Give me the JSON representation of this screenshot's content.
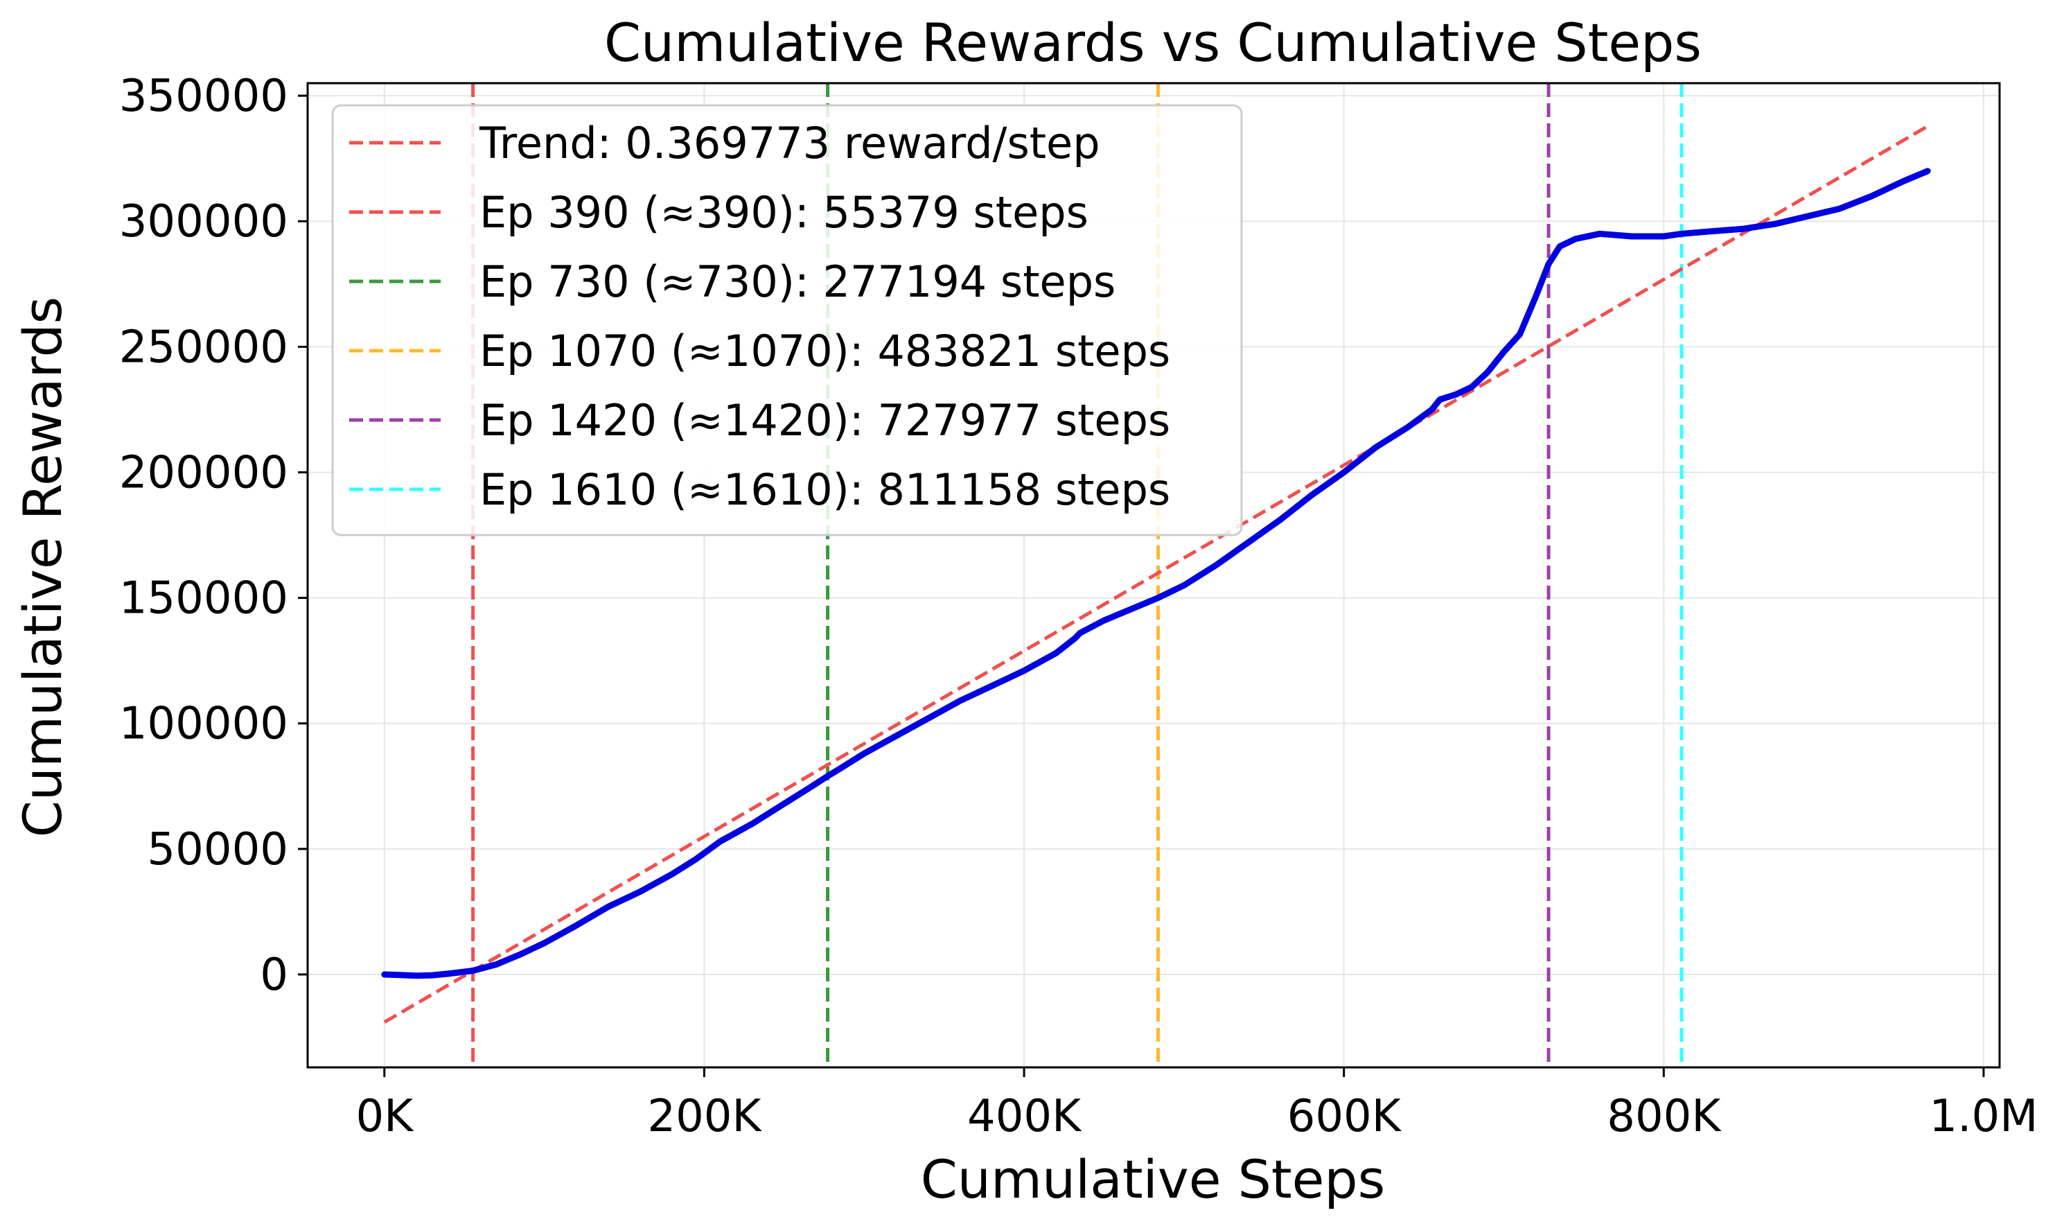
{
  "chart_data": {
    "type": "line",
    "title": "Cumulative Rewards vs Cumulative Steps",
    "xlabel": "Cumulative Steps",
    "ylabel": "Cumulative Rewards",
    "xlim": [
      -48000,
      1010000
    ],
    "ylim": [
      -37000,
      355000
    ],
    "x_ticks": [
      0,
      200000,
      400000,
      600000,
      800000,
      1000000
    ],
    "x_tick_labels": [
      "0K",
      "200K",
      "400K",
      "600K",
      "800K",
      "1.0M"
    ],
    "y_ticks": [
      0,
      50000,
      100000,
      150000,
      200000,
      250000,
      300000,
      350000
    ],
    "y_tick_labels": [
      "0",
      "50000",
      "100000",
      "150000",
      "200000",
      "250000",
      "300000",
      "350000"
    ],
    "grid": true,
    "legend_position": "top-left",
    "series": [
      {
        "name": "",
        "color": "#0000e0",
        "style": "solid",
        "x": [
          0,
          10000,
          20000,
          30000,
          40000,
          55379,
          70000,
          85000,
          100000,
          120000,
          140000,
          160000,
          180000,
          195000,
          210000,
          230000,
          250000,
          265000,
          277194,
          285000,
          300000,
          320000,
          340000,
          360000,
          380000,
          400000,
          420000,
          432000,
          435000,
          450000,
          483821,
          500000,
          520000,
          540000,
          560000,
          580000,
          600000,
          620000,
          640000,
          655000,
          660000,
          670000,
          680000,
          690000,
          700000,
          710000,
          720000,
          727977,
          735000,
          745000,
          760000,
          780000,
          800000,
          811158,
          830000,
          850000,
          870000,
          890000,
          910000,
          930000,
          950000,
          965000
        ],
        "y": [
          0,
          -200,
          -500,
          -300,
          300,
          1500,
          4000,
          8000,
          12500,
          19500,
          27000,
          33000,
          40000,
          46000,
          53000,
          60000,
          68000,
          74000,
          79000,
          82000,
          88000,
          95000,
          102000,
          109000,
          115000,
          121000,
          128000,
          134000,
          136000,
          141000,
          150000,
          155000,
          163000,
          172000,
          181000,
          191000,
          200000,
          210000,
          218000,
          225000,
          229000,
          231000,
          234000,
          240000,
          248000,
          255000,
          270000,
          283000,
          290000,
          293000,
          295000,
          294000,
          294000,
          295000,
          296000,
          297000,
          299000,
          302000,
          305000,
          310000,
          316000,
          320000
        ]
      },
      {
        "name": "Trend: 0.369773 reward/step",
        "color": "#f05050",
        "style": "dashed",
        "x": [
          0,
          965000
        ],
        "y": [
          -19000,
          337831
        ]
      }
    ],
    "vlines": [
      {
        "x": 55379,
        "label": "Ep 390 (≈390): 55379 steps",
        "color": "#f05050"
      },
      {
        "x": 277194,
        "label": "Ep 730 (≈730): 277194 steps",
        "color": "#3a9a3a"
      },
      {
        "x": 483821,
        "label": "Ep 1070 (≈1070): 483821 steps",
        "color": "#ffb733"
      },
      {
        "x": 727977,
        "label": "Ep 1420 (≈1420): 727977 steps",
        "color": "#9b40a8"
      },
      {
        "x": 811158,
        "label": "Ep 1610 (≈1610): 811158 steps",
        "color": "#33ffff"
      }
    ]
  }
}
